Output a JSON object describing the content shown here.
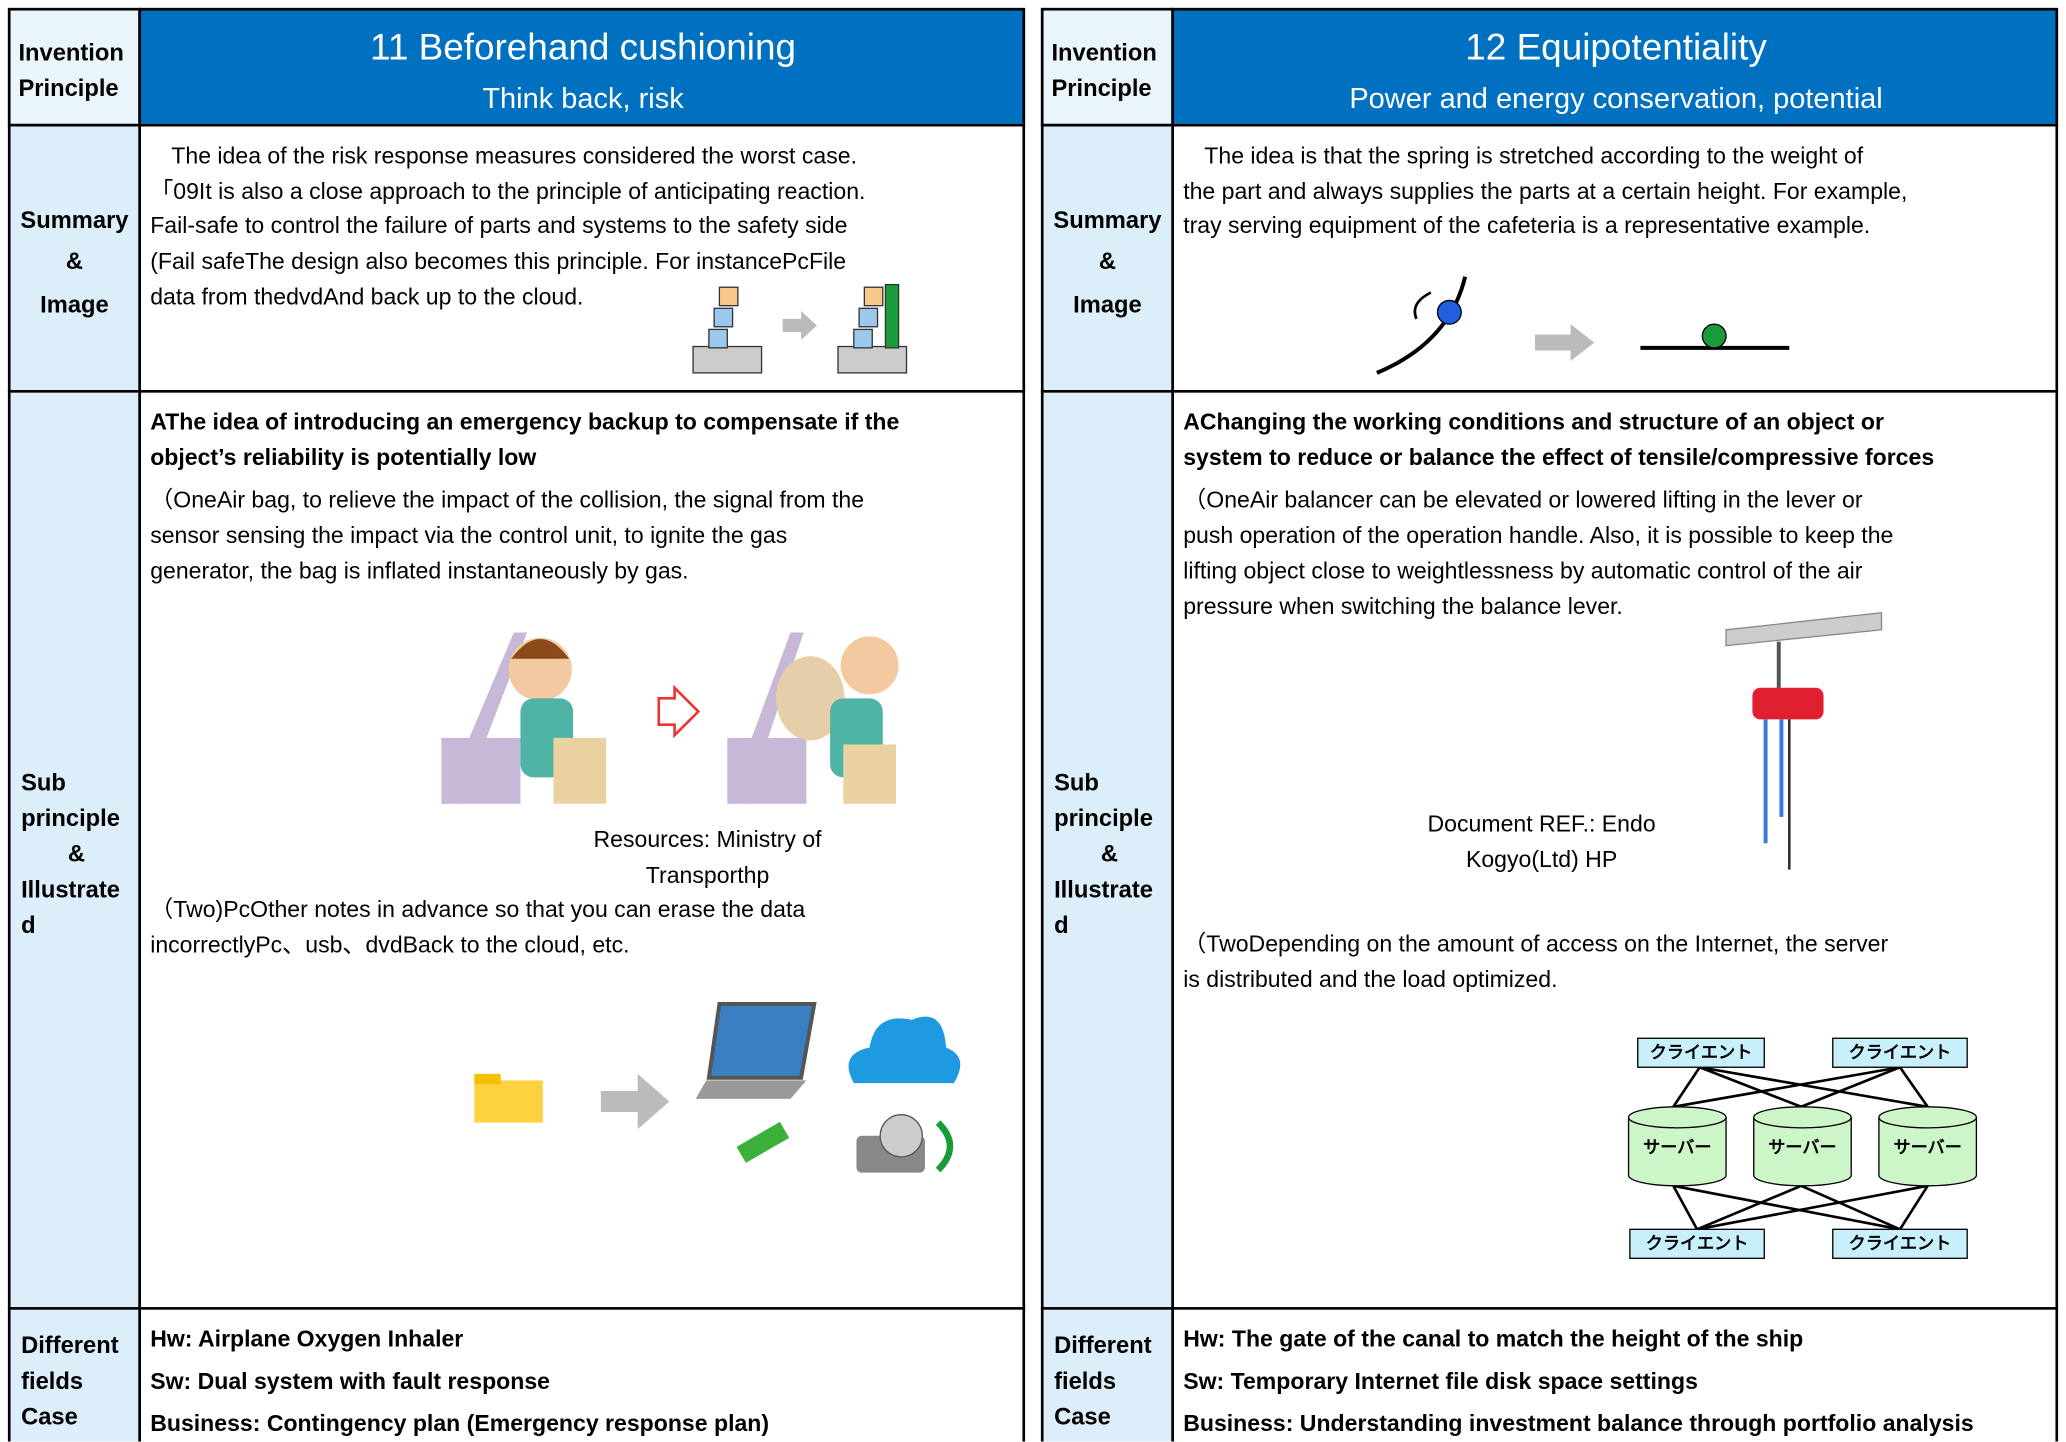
{
  "panels": [
    {
      "principle_label": [
        "Invention",
        "Principle"
      ],
      "title": "11 Beforehand cushioning",
      "subtitle": "Think back, risk",
      "summary": {
        "label": [
          "Summary",
          "&",
          "Image"
        ],
        "lines": [
          "The idea of the risk response measures considered the worst case.",
          "「09It is also a close approach to the principle of anticipating reaction.",
          "Fail-safe to control the failure of parts and systems to the safety side",
          "(Fail safeThe design also becomes this principle. For instancePcFile",
          "data from thedvdAnd back up to the cloud."
        ]
      },
      "sub": {
        "label": [
          "Sub",
          "principle",
          "&",
          "Illustrate",
          "d"
        ],
        "heading": [
          "AThe idea of introducing an emergency backup to compensate if the",
          "object’s reliability is potentially low"
        ],
        "paragraph1": [
          "（OneAir bag, to relieve the impact of the collision, the signal from the",
          "sensor sensing the impact via the control unit, to ignite the gas",
          "generator, the bag is inflated instantaneously by gas."
        ],
        "caption": [
          "Resources: Ministry of",
          "Transporthp"
        ],
        "paragraph2": [
          "（Two)PcOther notes in advance so that you can erase the data",
          "incorrectlyPc、usb、dvdBack to the cloud, etc."
        ]
      },
      "cases": {
        "label": [
          "Different",
          "fields",
          "Case"
        ],
        "items": [
          "Hw: Airplane Oxygen Inhaler",
          "Sw: Dual system with fault response",
          "Business: Contingency plan (Emergency response plan)"
        ]
      }
    },
    {
      "principle_label": [
        "Invention",
        "Principle"
      ],
      "title": "12 Equipotentiality",
      "subtitle": "Power and energy conservation, potential",
      "summary": {
        "label": [
          "Summary",
          "&",
          "Image"
        ],
        "lines": [
          "The idea is that the spring is stretched according to the weight of",
          "the part and always supplies the parts at a certain height. For example,",
          "tray serving equipment of the cafeteria is a representative example."
        ]
      },
      "sub": {
        "label": [
          "Sub",
          "principle",
          "&",
          "Illustrate",
          "d"
        ],
        "heading": [
          "AChanging the working conditions and structure of an object or",
          "system to reduce or balance the effect of tensile/compressive forces"
        ],
        "paragraph1": [
          "（OneAir balancer can be elevated or lowered lifting in the lever or",
          "push operation of the operation handle. Also, it is possible to keep the",
          "lifting object close to weightlessness by automatic control of the air",
          "pressure when switching the balance lever."
        ],
        "caption": [
          "Document REF.: Endo",
          "Kogyo(Ltd) HP"
        ],
        "paragraph2": [
          "（TwoDepending on the amount of access on the Internet, the server",
          "is distributed and the load optimized."
        ],
        "diagram": {
          "clients": [
            "クライエント",
            "クライエント",
            "クライエント",
            "クライエント"
          ],
          "servers": [
            "サーバー",
            "サーバー",
            "サーバー"
          ]
        }
      },
      "cases": {
        "label": [
          "Different",
          "fields",
          "Case"
        ],
        "items": [
          "Hw: The gate of the canal to match the height of the ship",
          "Sw: Temporary Internet file disk space settings",
          "Business: Understanding investment balance through portfolio analysis"
        ]
      }
    }
  ]
}
